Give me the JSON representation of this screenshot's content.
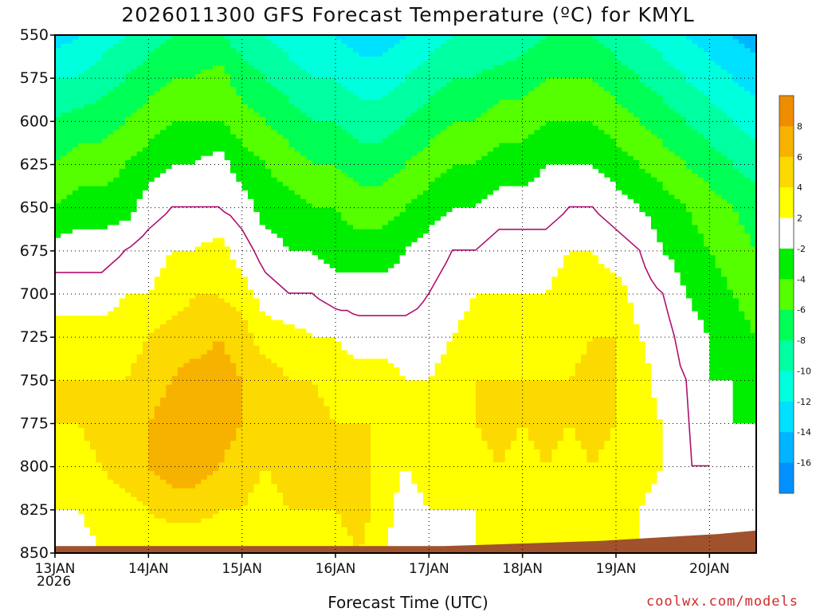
{
  "title": "2026011300 GFS Forecast Temperature (ºC) for KMYL",
  "credit": "coolwx.com/models",
  "chart_data": {
    "type": "heatmap",
    "title": "2026011300 GFS Forecast Temperature (ºC) for KMYL",
    "xlabel": "Forecast Time (UTC)",
    "ylabel": "",
    "x_ticks": [
      "13JAN",
      "14JAN",
      "15JAN",
      "16JAN",
      "17JAN",
      "18JAN",
      "19JAN",
      "20JAN"
    ],
    "x_first_tick_sublabel": "2026",
    "xlim_hours": [
      0,
      180
    ],
    "y_ticks": [
      550,
      575,
      600,
      625,
      650,
      675,
      700,
      725,
      750,
      775,
      800,
      825,
      850
    ],
    "ylim": [
      550,
      850
    ],
    "y_unit": "hPa",
    "grid": true,
    "colorbar": {
      "position": "right",
      "tick_labels": [
        "8",
        "6",
        "4",
        "2",
        "-2",
        "-4",
        "-6",
        "-8",
        "-10",
        "-12",
        "-14",
        "-16"
      ],
      "bands": [
        {
          "range": [
            8,
            10
          ],
          "color": "#f08c00"
        },
        {
          "range": [
            6,
            8
          ],
          "color": "#f7b200"
        },
        {
          "range": [
            4,
            6
          ],
          "color": "#fcd900"
        },
        {
          "range": [
            2,
            4
          ],
          "color": "#ffff00"
        },
        {
          "range": [
            -2,
            2
          ],
          "color": "#ffffff"
        },
        {
          "range": [
            -4,
            -2
          ],
          "color": "#00ee00"
        },
        {
          "range": [
            -6,
            -4
          ],
          "color": "#55ff00"
        },
        {
          "range": [
            -8,
            -6
          ],
          "color": "#00ff55"
        },
        {
          "range": [
            -10,
            -8
          ],
          "color": "#00ffa0"
        },
        {
          "range": [
            -12,
            -10
          ],
          "color": "#00ffdd"
        },
        {
          "range": [
            -14,
            -12
          ],
          "color": "#00e0ff"
        },
        {
          "range": [
            -16,
            -14
          ],
          "color": "#00b4ff"
        },
        {
          "range": [
            -18,
            -16
          ],
          "color": "#0090ff"
        }
      ]
    },
    "terrain_color": "#a0522d",
    "zero_contour_color": "#b0106e",
    "columns_hours": [
      0,
      6,
      12,
      18,
      24,
      30,
      36,
      42,
      48,
      54,
      60,
      66,
      72,
      78,
      84,
      90,
      96,
      102,
      108,
      114,
      120,
      126,
      132,
      138,
      144,
      150,
      156,
      162,
      168,
      174,
      180
    ],
    "temperature_profiles": [
      {
        "hour": 0,
        "levels": [
          550,
          575,
          600,
          625,
          650,
          675,
          700,
          725,
          750,
          775,
          800,
          825,
          850
        ],
        "temps": [
          -13,
          -10,
          -8,
          -6,
          -4,
          -1,
          1,
          3,
          4,
          4,
          3,
          2,
          1
        ]
      },
      {
        "hour": 6,
        "levels": [
          550,
          575,
          600,
          625,
          650,
          675,
          700,
          725,
          750,
          775,
          800,
          825,
          850
        ],
        "temps": [
          -12,
          -10,
          -7,
          -5,
          -3,
          -1,
          1,
          3,
          4,
          4,
          3,
          2,
          1
        ]
      },
      {
        "hour": 12,
        "levels": [
          550,
          575,
          600,
          625,
          650,
          675,
          700,
          725,
          750,
          775,
          800,
          825,
          850
        ],
        "temps": [
          -11,
          -9,
          -7,
          -5,
          -3,
          -1,
          1,
          3,
          4,
          5,
          4,
          3,
          2
        ]
      },
      {
        "hour": 18,
        "levels": [
          550,
          575,
          600,
          625,
          650,
          675,
          700,
          725,
          750,
          775,
          800,
          825,
          850
        ],
        "temps": [
          -10,
          -8,
          -6,
          -4,
          -3,
          0,
          2,
          3,
          4,
          5,
          5,
          3,
          2
        ]
      },
      {
        "hour": 24,
        "levels": [
          550,
          575,
          600,
          625,
          650,
          675,
          700,
          725,
          750,
          775,
          800,
          825,
          850
        ],
        "temps": [
          -9,
          -7,
          -5,
          -3,
          -1,
          1,
          2,
          4,
          5,
          6,
          6,
          4,
          2
        ]
      },
      {
        "hour": 30,
        "levels": [
          550,
          575,
          600,
          625,
          650,
          675,
          700,
          725,
          750,
          775,
          800,
          825,
          850
        ],
        "temps": [
          -8,
          -6,
          -4,
          -2,
          0,
          2,
          3,
          5,
          6,
          7,
          7,
          5,
          2
        ]
      },
      {
        "hour": 36,
        "levels": [
          550,
          575,
          600,
          625,
          650,
          675,
          700,
          725,
          750,
          775,
          800,
          825,
          850
        ],
        "temps": [
          -8,
          -6,
          -4,
          -2,
          0,
          2,
          4,
          5,
          7,
          7,
          7,
          5,
          2
        ]
      },
      {
        "hour": 42,
        "levels": [
          550,
          575,
          600,
          625,
          650,
          675,
          700,
          725,
          750,
          775,
          800,
          825,
          850
        ],
        "temps": [
          -8,
          -5,
          -4,
          -1,
          0,
          3,
          4,
          6,
          7,
          7,
          6,
          4,
          2
        ]
      },
      {
        "hour": 48,
        "levels": [
          550,
          575,
          600,
          625,
          650,
          675,
          700,
          725,
          750,
          775,
          800,
          825,
          850
        ],
        "temps": [
          -9,
          -7,
          -5,
          -3,
          -1,
          1,
          3,
          5,
          6,
          6,
          5,
          4,
          2
        ]
      },
      {
        "hour": 54,
        "levels": [
          550,
          575,
          600,
          625,
          650,
          675,
          700,
          725,
          750,
          775,
          800,
          825,
          850
        ],
        "temps": [
          -10,
          -8,
          -6,
          -4,
          -3,
          -1,
          1,
          3,
          5,
          5,
          4,
          3,
          2
        ]
      },
      {
        "hour": 60,
        "levels": [
          550,
          575,
          600,
          625,
          650,
          675,
          700,
          725,
          750,
          775,
          800,
          825,
          850
        ],
        "temps": [
          -11,
          -9,
          -7,
          -5,
          -3,
          -2,
          0,
          3,
          4,
          5,
          5,
          4,
          3
        ]
      },
      {
        "hour": 66,
        "levels": [
          550,
          575,
          600,
          625,
          650,
          675,
          700,
          725,
          750,
          775,
          800,
          825,
          850
        ],
        "temps": [
          -12,
          -10,
          -8,
          -6,
          -4,
          -2,
          0,
          2,
          4,
          5,
          5,
          4,
          3
        ]
      },
      {
        "hour": 72,
        "levels": [
          550,
          575,
          600,
          625,
          650,
          675,
          700,
          725,
          750,
          775,
          800,
          825,
          850
        ],
        "temps": [
          -12,
          -10,
          -8,
          -6,
          -4,
          -3,
          -1,
          2,
          3,
          4,
          5,
          4,
          3
        ]
      },
      {
        "hour": 78,
        "levels": [
          550,
          575,
          600,
          625,
          650,
          675,
          700,
          725,
          750,
          775,
          800,
          825,
          850
        ],
        "temps": [
          -13,
          -11,
          -9,
          -7,
          -5,
          -3,
          -1,
          1,
          3,
          4,
          5,
          5,
          4
        ]
      },
      {
        "hour": 84,
        "levels": [
          550,
          575,
          600,
          625,
          650,
          675,
          700,
          725,
          750,
          775,
          800,
          825,
          850
        ],
        "temps": [
          -13,
          -11,
          -9,
          -7,
          -5,
          -3,
          -1,
          1,
          3,
          4,
          3,
          3,
          2
        ]
      },
      {
        "hour": 90,
        "levels": [
          550,
          575,
          600,
          625,
          650,
          675,
          700,
          725,
          750,
          775,
          800,
          825,
          850
        ],
        "temps": [
          -12,
          -10,
          -8,
          -6,
          -4,
          -2,
          -1,
          1,
          2,
          3,
          2,
          1,
          1
        ]
      },
      {
        "hour": 96,
        "levels": [
          550,
          575,
          600,
          625,
          650,
          675,
          700,
          725,
          750,
          775,
          800,
          825,
          850
        ],
        "temps": [
          -11,
          -9,
          -7,
          -5,
          -3,
          -1,
          0,
          1,
          2,
          3,
          3,
          2,
          1
        ]
      },
      {
        "hour": 102,
        "levels": [
          550,
          575,
          600,
          625,
          650,
          675,
          700,
          725,
          750,
          775,
          800,
          825,
          850
        ],
        "temps": [
          -10,
          -8,
          -6,
          -4,
          -2,
          0,
          1,
          2,
          3,
          4,
          3,
          2,
          1
        ]
      },
      {
        "hour": 108,
        "levels": [
          550,
          575,
          600,
          625,
          650,
          675,
          700,
          725,
          750,
          775,
          800,
          825,
          850
        ],
        "temps": [
          -10,
          -8,
          -6,
          -4,
          -2,
          0,
          2,
          3,
          4,
          4,
          3,
          2,
          2
        ]
      },
      {
        "hour": 114,
        "levels": [
          550,
          575,
          600,
          625,
          650,
          675,
          700,
          725,
          750,
          775,
          800,
          825,
          850
        ],
        "temps": [
          -10,
          -7,
          -5,
          -3,
          -1,
          1,
          2,
          3,
          4,
          5,
          4,
          3,
          2
        ]
      },
      {
        "hour": 120,
        "levels": [
          550,
          575,
          600,
          625,
          650,
          675,
          700,
          725,
          750,
          775,
          800,
          825,
          850
        ],
        "temps": [
          -9,
          -7,
          -5,
          -3,
          -1,
          1,
          2,
          3,
          4,
          4,
          3,
          2,
          2
        ]
      },
      {
        "hour": 126,
        "levels": [
          550,
          575,
          600,
          625,
          650,
          675,
          700,
          725,
          750,
          775,
          800,
          825,
          850
        ],
        "temps": [
          -8,
          -6,
          -4,
          -2,
          -1,
          1,
          2,
          3,
          4,
          5,
          4,
          3,
          2
        ]
      },
      {
        "hour": 132,
        "levels": [
          550,
          575,
          600,
          625,
          650,
          675,
          700,
          725,
          750,
          775,
          800,
          825,
          850
        ],
        "temps": [
          -8,
          -6,
          -4,
          -2,
          0,
          2,
          3,
          3,
          4,
          4,
          3,
          2,
          2
        ]
      },
      {
        "hour": 138,
        "levels": [
          550,
          575,
          600,
          625,
          650,
          675,
          700,
          725,
          750,
          775,
          800,
          825,
          850
        ],
        "temps": [
          -8,
          -6,
          -4,
          -2,
          0,
          2,
          3,
          4,
          5,
          5,
          4,
          3,
          2
        ]
      },
      {
        "hour": 144,
        "levels": [
          550,
          575,
          600,
          625,
          650,
          675,
          700,
          725,
          750,
          775,
          800,
          825,
          850
        ],
        "temps": [
          -9,
          -7,
          -5,
          -3,
          -1,
          1,
          3,
          4,
          4,
          4,
          3,
          3,
          2
        ]
      },
      {
        "hour": 150,
        "levels": [
          550,
          575,
          600,
          625,
          650,
          675,
          700,
          725,
          750,
          775,
          800,
          825,
          850
        ],
        "temps": [
          -10,
          -8,
          -6,
          -4,
          -2,
          0,
          1,
          2,
          3,
          3,
          3,
          2,
          2
        ]
      },
      {
        "hour": 156,
        "levels": [
          550,
          575,
          600,
          625,
          650,
          675,
          700,
          725,
          750,
          775,
          800,
          825,
          850
        ],
        "temps": [
          -11,
          -9,
          -7,
          -5,
          -3,
          -2,
          0,
          1,
          1,
          2,
          2,
          1,
          1
        ]
      },
      {
        "hour": 162,
        "levels": [
          550,
          575,
          600,
          625,
          650,
          675,
          700,
          725,
          750,
          775,
          800,
          825,
          850
        ],
        "temps": [
          -12,
          -10,
          -8,
          -6,
          -4,
          -3,
          -2,
          -1,
          0,
          0,
          0,
          0,
          0
        ]
      },
      {
        "hour": 168,
        "levels": [
          550,
          575,
          600,
          625,
          650,
          675,
          700,
          725,
          750,
          775,
          800,
          825,
          850
        ],
        "temps": [
          -13,
          -11,
          -9,
          -7,
          -5,
          -4,
          -3,
          -2,
          -2,
          -1,
          0,
          0,
          0
        ]
      },
      {
        "hour": 174,
        "levels": [
          550,
          575,
          600,
          625,
          650,
          675,
          700,
          725,
          750,
          775,
          800,
          825,
          850
        ],
        "temps": [
          -14,
          -12,
          -10,
          -8,
          -6,
          -5,
          -4,
          -3,
          -2,
          -2,
          -1,
          -1,
          -1
        ]
      },
      {
        "hour": 180,
        "levels": [
          550,
          575,
          600,
          625,
          650,
          675,
          700,
          725,
          750,
          775,
          800,
          825,
          850
        ],
        "temps": [
          -15,
          -13,
          -11,
          -9,
          -7,
          -6,
          -5,
          -4,
          -3,
          -2,
          -1,
          -1,
          -1
        ]
      }
    ],
    "terrain_top_hpa": [
      {
        "hour": 0,
        "p": 846
      },
      {
        "hour": 100,
        "p": 846
      },
      {
        "hour": 140,
        "p": 843
      },
      {
        "hour": 170,
        "p": 839
      },
      {
        "hour": 180,
        "p": 837
      }
    ]
  }
}
